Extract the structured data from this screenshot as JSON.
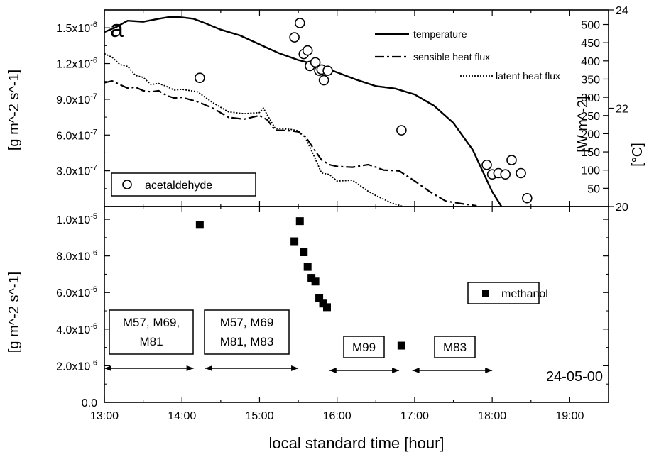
{
  "chart_data": [
    {
      "type": "scatter",
      "panel_label": "a",
      "x_range_hours": [
        13.0,
        19.5
      ],
      "ylabel": "[g m^-2 s^-1]",
      "ylim": [
        0,
        1.65e-06
      ],
      "yticks": [
        {
          "v": 3e-07,
          "mant": "3.0x10",
          "exp": "-7"
        },
        {
          "v": 6e-07,
          "mant": "6.0x10",
          "exp": "-7"
        },
        {
          "v": 9e-07,
          "mant": "9.0x10",
          "exp": "-7"
        },
        {
          "v": 1.2e-06,
          "mant": "1.2x10",
          "exp": "-6"
        },
        {
          "v": 1.5e-06,
          "mant": "1.5x10",
          "exp": "-6"
        }
      ],
      "flux_axis": {
        "label": "[W m^-2]",
        "ylim": [
          0,
          540
        ],
        "ticks": [
          50,
          100,
          150,
          200,
          250,
          300,
          350,
          400,
          450,
          500
        ]
      },
      "temp_axis": {
        "label": "[°C]",
        "ylim": [
          20,
          24
        ],
        "ticks": [
          20,
          22,
          24
        ]
      },
      "legend": {
        "temperature": "temperature",
        "sensible": "sensible heat flux",
        "latent": "latent heat flux",
        "species": "acetaldehyde"
      },
      "series": [
        {
          "name": "acetaldehyde",
          "marker": "open-circle",
          "points": [
            [
              14.23,
              1.08e-06
            ],
            [
              15.45,
              1.42e-06
            ],
            [
              15.52,
              1.54e-06
            ],
            [
              15.57,
              1.28e-06
            ],
            [
              15.62,
              1.31e-06
            ],
            [
              15.65,
              1.18e-06
            ],
            [
              15.72,
              1.21e-06
            ],
            [
              15.77,
              1.14e-06
            ],
            [
              15.8,
              1.15e-06
            ],
            [
              15.83,
              1.06e-06
            ],
            [
              15.88,
              1.14e-06
            ],
            [
              16.83,
              6.4e-07
            ],
            [
              17.93,
              3.5e-07
            ],
            [
              18.0,
              2.7e-07
            ],
            [
              18.08,
              2.8e-07
            ],
            [
              18.17,
              2.7e-07
            ],
            [
              18.25,
              3.9e-07
            ],
            [
              18.37,
              2.8e-07
            ],
            [
              18.45,
              7e-08
            ]
          ]
        },
        {
          "name": "temperature",
          "unit": "°C",
          "points": [
            [
              13.0,
              23.55
            ],
            [
              13.15,
              23.65
            ],
            [
              13.3,
              23.78
            ],
            [
              13.5,
              23.76
            ],
            [
              13.7,
              23.82
            ],
            [
              13.85,
              23.86
            ],
            [
              14.0,
              23.85
            ],
            [
              14.15,
              23.82
            ],
            [
              14.3,
              23.73
            ],
            [
              14.5,
              23.6
            ],
            [
              14.75,
              23.48
            ],
            [
              15.0,
              23.3
            ],
            [
              15.25,
              23.12
            ],
            [
              15.5,
              22.98
            ],
            [
              15.75,
              22.88
            ],
            [
              16.0,
              22.73
            ],
            [
              16.25,
              22.58
            ],
            [
              16.5,
              22.45
            ],
            [
              16.75,
              22.4
            ],
            [
              17.0,
              22.28
            ],
            [
              17.25,
              22.05
            ],
            [
              17.5,
              21.7
            ],
            [
              17.75,
              21.15
            ],
            [
              18.0,
              20.3
            ],
            [
              18.12,
              20.0
            ]
          ]
        },
        {
          "name": "sensible heat flux",
          "unit": "W m^-2",
          "points": [
            [
              13.0,
              340
            ],
            [
              13.1,
              345
            ],
            [
              13.2,
              335
            ],
            [
              13.3,
              325
            ],
            [
              13.4,
              328
            ],
            [
              13.5,
              318
            ],
            [
              13.6,
              315
            ],
            [
              13.7,
              318
            ],
            [
              13.8,
              305
            ],
            [
              13.9,
              298
            ],
            [
              14.0,
              300
            ],
            [
              14.2,
              288
            ],
            [
              14.4,
              270
            ],
            [
              14.6,
              245
            ],
            [
              14.8,
              240
            ],
            [
              15.0,
              250
            ],
            [
              15.1,
              238
            ],
            [
              15.2,
              210
            ],
            [
              15.4,
              208
            ],
            [
              15.5,
              205
            ],
            [
              15.6,
              190
            ],
            [
              15.7,
              158
            ],
            [
              15.8,
              128
            ],
            [
              15.9,
              115
            ],
            [
              16.0,
              110
            ],
            [
              16.2,
              108
            ],
            [
              16.4,
              115
            ],
            [
              16.5,
              108
            ],
            [
              16.6,
              100
            ],
            [
              16.8,
              98
            ],
            [
              17.0,
              70
            ],
            [
              17.2,
              40
            ],
            [
              17.4,
              15
            ],
            [
              17.6,
              8
            ],
            [
              17.8,
              2
            ]
          ]
        },
        {
          "name": "latent heat flux",
          "unit": "W m^-2",
          "points": [
            [
              13.0,
              420
            ],
            [
              13.1,
              410
            ],
            [
              13.2,
              390
            ],
            [
              13.3,
              385
            ],
            [
              13.4,
              360
            ],
            [
              13.5,
              355
            ],
            [
              13.6,
              335
            ],
            [
              13.7,
              338
            ],
            [
              13.8,
              330
            ],
            [
              13.9,
              320
            ],
            [
              14.0,
              322
            ],
            [
              14.2,
              315
            ],
            [
              14.4,
              285
            ],
            [
              14.6,
              260
            ],
            [
              14.8,
              255
            ],
            [
              15.0,
              258
            ],
            [
              15.05,
              270
            ],
            [
              15.2,
              215
            ],
            [
              15.4,
              212
            ],
            [
              15.5,
              208
            ],
            [
              15.6,
              185
            ],
            [
              15.7,
              140
            ],
            [
              15.8,
              92
            ],
            [
              15.9,
              88
            ],
            [
              16.0,
              70
            ],
            [
              16.2,
              72
            ],
            [
              16.4,
              42
            ],
            [
              16.5,
              30
            ],
            [
              16.7,
              10
            ],
            [
              16.85,
              0
            ]
          ]
        }
      ]
    },
    {
      "type": "scatter",
      "xlabel": "local standard time [hour]",
      "xlim": [
        13.0,
        19.5
      ],
      "xticks": [
        "13:00",
        "14:00",
        "15:00",
        "16:00",
        "17:00",
        "18:00",
        "19:00"
      ],
      "ylabel": "[g m^-2 s^-1]",
      "ylim": [
        0,
        1.07e-05
      ],
      "yticks": [
        {
          "v": 0,
          "mant": "0.0",
          "exp": ""
        },
        {
          "v": 2e-06,
          "mant": "2.0x10",
          "exp": "-6"
        },
        {
          "v": 4e-06,
          "mant": "4.0x10",
          "exp": "-6"
        },
        {
          "v": 6e-06,
          "mant": "6.0x10",
          "exp": "-6"
        },
        {
          "v": 8e-06,
          "mant": "8.0x10",
          "exp": "-6"
        },
        {
          "v": 1e-05,
          "mant": "1.0x10",
          "exp": "-5"
        }
      ],
      "legend": {
        "species": "methanol"
      },
      "date_label": "24-05-00",
      "series": [
        {
          "name": "methanol",
          "marker": "filled-square",
          "points": [
            [
              14.23,
              9.7e-06
            ],
            [
              15.45,
              8.8e-06
            ],
            [
              15.52,
              9.9e-06
            ],
            [
              15.57,
              8.2e-06
            ],
            [
              15.62,
              7.4e-06
            ],
            [
              15.67,
              6.8e-06
            ],
            [
              15.72,
              6.6e-06
            ],
            [
              15.77,
              5.7e-06
            ],
            [
              15.82,
              5.4e-06
            ],
            [
              15.87,
              5.2e-06
            ],
            [
              16.83,
              3.1e-06
            ]
          ]
        }
      ],
      "intervals": [
        {
          "lines": [
            "M57, M69,",
            "M81"
          ],
          "start": 13.0,
          "end": 14.15
        },
        {
          "lines": [
            "M57, M69",
            "M81, M83"
          ],
          "start": 14.3,
          "end": 15.5
        },
        {
          "lines": [
            "M99"
          ],
          "start": 15.9,
          "end": 16.8
        },
        {
          "lines": [
            "M83"
          ],
          "start": 16.97,
          "end": 18.0
        }
      ]
    }
  ]
}
